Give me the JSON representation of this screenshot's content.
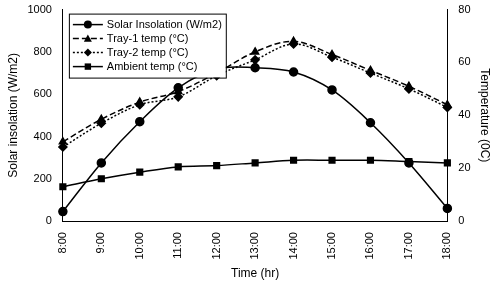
{
  "chart_data": {
    "type": "line",
    "x_label": "Time (hr)",
    "y_label": "Solar insolation (W/m2)",
    "y2_label": "Temperature (0C)",
    "categories": [
      "8:00",
      "9:00",
      "10:00",
      "11:00",
      "12:00",
      "13:00",
      "14:00",
      "15:00",
      "16:00",
      "17:00",
      "18:00"
    ],
    "series": [
      {
        "name": "Solar Insolation (W/m2)",
        "color": "#000000",
        "marker": "circle",
        "line_style": "solid",
        "values": [
          45,
          275,
          470,
          630,
          720,
          725,
          705,
          620,
          465,
          275,
          60
        ]
      },
      {
        "name": "Tray-1 temp (°C)",
        "color": "#000000",
        "marker": "triangle",
        "line_style": "dashed",
        "axis": "y2",
        "values": [
          30,
          38.5,
          45,
          49,
          56,
          64,
          68,
          63,
          57,
          51,
          44
        ]
      },
      {
        "name": "Tray-2 temp (°C)",
        "color": "#000000",
        "marker": "diamond",
        "line_style": "dotted",
        "axis": "y2",
        "values": [
          28,
          37,
          44,
          47,
          55,
          61,
          67,
          62,
          56,
          50,
          43
        ]
      },
      {
        "name": "Ambient temp (°C)",
        "color": "#000000",
        "marker": "square",
        "line_style": "solid",
        "axis": "y2",
        "values": [
          13,
          16,
          18.5,
          20.5,
          21,
          22,
          23,
          23,
          23,
          22.5,
          22
        ]
      }
    ],
    "ylim": [
      0,
      1000
    ],
    "yticks": [
      0,
      200,
      400,
      600,
      800,
      1000
    ],
    "y2lim": [
      0,
      80
    ],
    "y2ticks": [
      0,
      20,
      40,
      60,
      80
    ],
    "grid": false,
    "legend": "upper left"
  }
}
